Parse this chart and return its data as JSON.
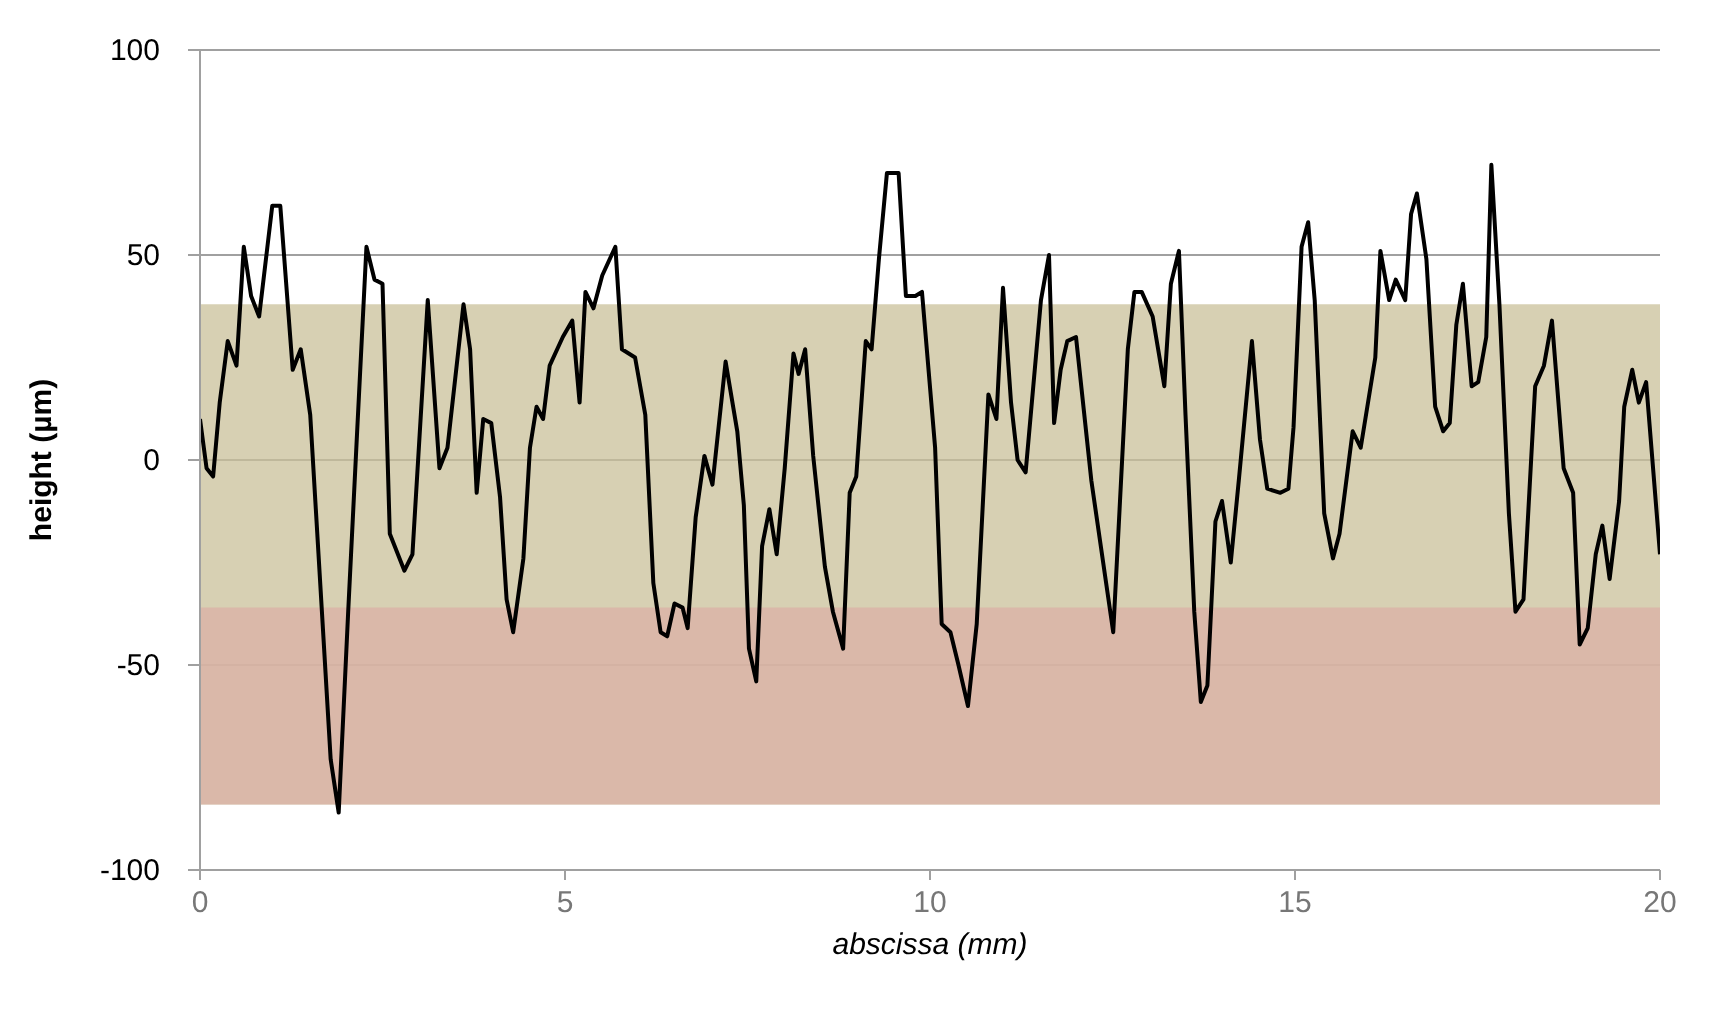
{
  "chart_data": {
    "type": "line",
    "xlabel": "abscissa (mm)",
    "ylabel": "height (µm)",
    "xlim": [
      0,
      20
    ],
    "xticks": [
      0,
      5,
      10,
      15,
      20
    ],
    "ylim": [
      -100,
      100
    ],
    "yticks": [
      -100,
      -50,
      0,
      50,
      100
    ],
    "grid": "y",
    "marker": "none",
    "line_style": "solid",
    "bands": [
      {
        "axis": "y",
        "from": -84,
        "to": 38,
        "color": "#c9c09a"
      },
      {
        "axis": "y",
        "from": -84,
        "to": -36,
        "color": "#dbb0a6"
      }
    ],
    "series": [
      {
        "color": "#000000",
        "x": [
          0,
          0.09,
          0.18,
          0.27,
          0.38,
          0.5,
          0.6,
          0.7,
          0.81,
          0.99,
          1.1,
          1.27,
          1.38,
          1.51,
          1.67,
          1.79,
          1.9,
          2.03,
          2.15,
          2.28,
          2.39,
          2.5,
          2.6,
          2.8,
          2.91,
          3.12,
          3.28,
          3.39,
          3.61,
          3.7,
          3.79,
          3.88,
          3.99,
          4.11,
          4.2,
          4.29,
          4.43,
          4.52,
          4.61,
          4.7,
          4.79,
          4.97,
          5.1,
          5.2,
          5.28,
          5.39,
          5.51,
          5.69,
          5.78,
          5.96,
          6.1,
          6.21,
          6.31,
          6.4,
          6.5,
          6.61,
          6.68,
          6.79,
          6.91,
          7.02,
          7.2,
          7.36,
          7.45,
          7.52,
          7.62,
          7.7,
          7.8,
          7.9,
          8.01,
          8.13,
          8.2,
          8.29,
          8.4,
          8.56,
          8.67,
          8.81,
          8.9,
          8.99,
          9.12,
          9.2,
          9.3,
          9.41,
          9.57,
          9.67,
          9.8,
          9.89,
          10.07,
          10.16,
          10.28,
          10.39,
          10.52,
          10.64,
          10.8,
          10.91,
          11.0,
          11.11,
          11.2,
          11.31,
          11.52,
          11.63,
          11.7,
          11.79,
          11.88,
          12.0,
          12.21,
          12.51,
          12.71,
          12.8,
          12.9,
          13.05,
          13.21,
          13.3,
          13.41,
          13.5,
          13.62,
          13.71,
          13.8,
          13.91,
          14.0,
          14.12,
          14.23,
          14.41,
          14.52,
          14.62,
          14.8,
          14.91,
          14.98,
          15.09,
          15.18,
          15.27,
          15.4,
          15.52,
          15.61,
          15.79,
          15.9,
          16.1,
          16.17,
          16.29,
          16.38,
          16.51,
          16.59,
          16.67,
          16.8,
          16.92,
          17.03,
          17.12,
          17.21,
          17.3,
          17.42,
          17.51,
          17.62,
          17.69,
          17.8,
          17.93,
          18.02,
          18.13,
          18.29,
          18.41,
          18.52,
          18.68,
          18.81,
          18.9,
          19.01,
          19.12,
          19.21,
          19.31,
          19.44,
          19.51,
          19.62,
          19.71,
          19.81,
          20.0
        ],
        "values": [
          10,
          -2,
          -4,
          14,
          29,
          23,
          52,
          40,
          35,
          62,
          62,
          22,
          27,
          11,
          -37,
          -73,
          -86,
          -37,
          6,
          52,
          44,
          43,
          -18,
          -27,
          -23,
          39,
          -2,
          3,
          38,
          27,
          -8,
          10,
          9,
          -9,
          -34,
          -42,
          -24,
          3,
          13,
          10,
          23,
          30,
          34,
          14,
          41,
          37,
          45,
          52,
          27,
          25,
          11,
          -30,
          -42,
          -43,
          -35,
          -36,
          -41,
          -14,
          1,
          -6,
          24,
          7,
          -11,
          -46,
          -54,
          -21,
          -12,
          -23,
          -2,
          26,
          21,
          27,
          1,
          -26,
          -37,
          -46,
          -8,
          -4,
          29,
          27,
          49,
          70,
          70,
          40,
          40,
          41,
          3,
          -40,
          -42,
          -50,
          -60,
          -40,
          16,
          10,
          42,
          14,
          0,
          -3,
          39,
          50,
          9,
          22,
          29,
          30,
          -5,
          -42,
          27,
          41,
          41,
          35,
          18,
          43,
          51,
          11,
          -37,
          -59,
          -55,
          -15,
          -10,
          -25,
          -5,
          29,
          5,
          -7,
          -8,
          -7,
          8,
          52,
          58,
          39,
          -13,
          -24,
          -18,
          7,
          3,
          25,
          51,
          39,
          44,
          39,
          60,
          65,
          49,
          13,
          7,
          9,
          33,
          43,
          18,
          19,
          30,
          72,
          38,
          -13,
          -37,
          -34,
          18,
          23,
          34,
          -2,
          -8,
          -45,
          -41,
          -23,
          -16,
          -29,
          -10,
          13,
          22,
          14,
          19,
          -23
        ]
      }
    ]
  }
}
